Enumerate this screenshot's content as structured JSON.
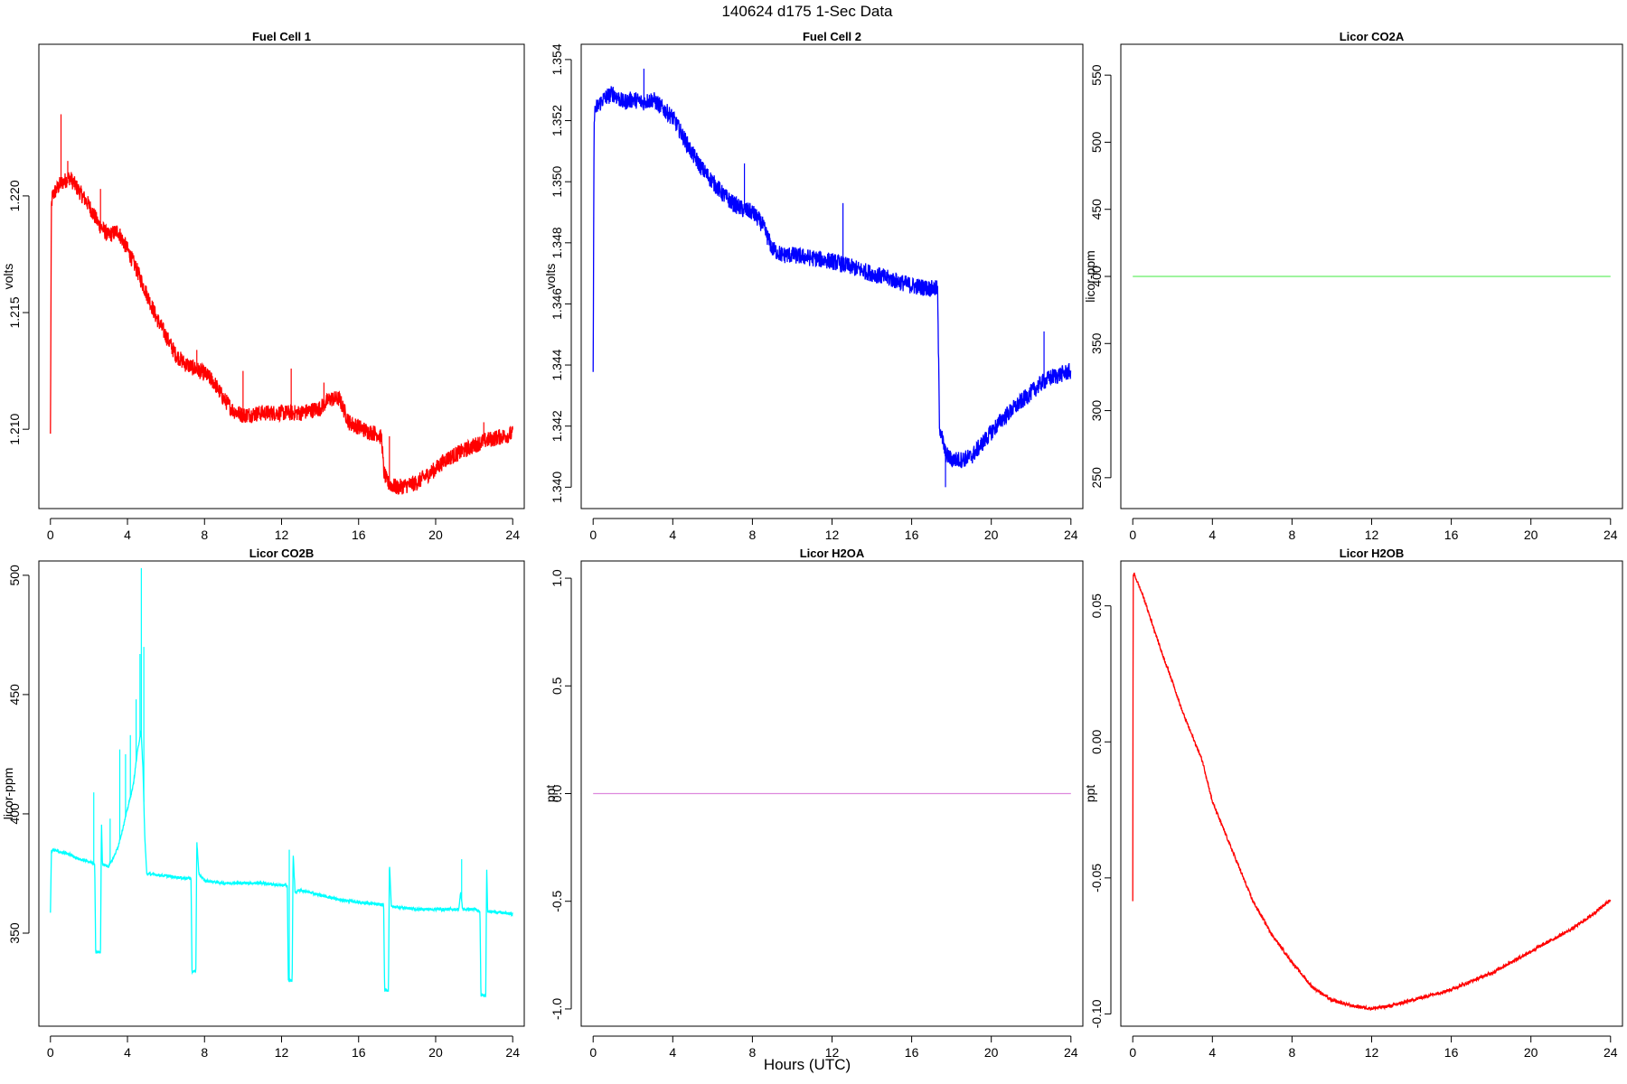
{
  "figure": {
    "title": "140624   d175   1-Sec Data",
    "xlabel": "Hours (UTC)"
  },
  "chart_data": [
    {
      "type": "line",
      "title": "Fuel Cell 1",
      "xlabel": "",
      "ylabel": "volts",
      "color": "#ff0000",
      "xlim": [
        -0.6,
        24.6
      ],
      "ylim": [
        1.2066,
        1.2265
      ],
      "xticks": [
        0,
        4,
        8,
        12,
        16,
        20,
        24
      ],
      "yticks": [
        1.21,
        1.215,
        1.22
      ],
      "ytick_labels": [
        "1.210",
        "1.215",
        "1.220"
      ],
      "noise": 0.00035,
      "series": [
        {
          "x": [
            0,
            0.05,
            0.1,
            0.5,
            1,
            1.5,
            2,
            2.5,
            3,
            3.5,
            4,
            4.5,
            5,
            5.5,
            6,
            6.5,
            7,
            7.5,
            8,
            8.5,
            9,
            9.5,
            10,
            11,
            12,
            13,
            14,
            14.5,
            15,
            15.5,
            16,
            16.5,
            17,
            17.2,
            17.3,
            17.5,
            18,
            18.5,
            19,
            19.5,
            20,
            20.5,
            21,
            21.5,
            22,
            22.5,
            23,
            23.5,
            24
          ],
          "y": [
            1.2097,
            1.2195,
            1.22,
            1.2205,
            1.2208,
            1.2202,
            1.2196,
            1.2188,
            1.2183,
            1.2185,
            1.2177,
            1.2168,
            1.2158,
            1.2148,
            1.214,
            1.2132,
            1.2128,
            1.2126,
            1.2124,
            1.212,
            1.2113,
            1.2108,
            1.2106,
            1.2107,
            1.2107,
            1.2107,
            1.2109,
            1.2113,
            1.2113,
            1.2103,
            1.2101,
            1.2099,
            1.2098,
            1.2096,
            1.2082,
            1.2077,
            1.2075,
            1.2076,
            1.2077,
            1.208,
            1.2083,
            1.2087,
            1.2089,
            1.2091,
            1.2093,
            1.2095,
            1.2096,
            1.2097,
            1.2098
          ]
        }
      ],
      "spikes": [
        {
          "x": 0.55,
          "y": 1.2235
        },
        {
          "x": 0.9,
          "y": 1.2215
        },
        {
          "x": 2.6,
          "y": 1.2203
        },
        {
          "x": 7.6,
          "y": 1.2134
        },
        {
          "x": 10.0,
          "y": 1.2125
        },
        {
          "x": 12.5,
          "y": 1.2126
        },
        {
          "x": 14.2,
          "y": 1.212
        },
        {
          "x": 17.6,
          "y": 1.2097
        },
        {
          "x": 22.5,
          "y": 1.2103
        }
      ]
    },
    {
      "type": "line",
      "title": "Fuel Cell 2",
      "xlabel": "",
      "ylabel": "volts",
      "color": "#0000ff",
      "xlim": [
        -0.6,
        24.6
      ],
      "ylim": [
        1.3393,
        1.3545
      ],
      "xticks": [
        0,
        4,
        8,
        12,
        16,
        20,
        24
      ],
      "yticks": [
        1.34,
        1.342,
        1.344,
        1.346,
        1.348,
        1.35,
        1.352,
        1.354
      ],
      "ytick_labels": [
        "1.340",
        "1.342",
        "1.344",
        "1.346",
        "1.348",
        "1.350",
        "1.352",
        "1.354"
      ],
      "noise": 0.00028,
      "series": [
        {
          "x": [
            0,
            0.05,
            0.15,
            0.5,
            1,
            1.5,
            2,
            2.5,
            3,
            3.5,
            4,
            4.5,
            5,
            5.5,
            6,
            6.5,
            7,
            7.5,
            8,
            8.5,
            9,
            9.5,
            10,
            11,
            12,
            13,
            14,
            15,
            16,
            17,
            17.3,
            17.4,
            17.7,
            18,
            18.5,
            19,
            19.5,
            20,
            20.5,
            21,
            21.5,
            22,
            22.5,
            23,
            23.5,
            24
          ],
          "y": [
            1.3437,
            1.3522,
            1.3524,
            1.3527,
            1.3529,
            1.3526,
            1.3527,
            1.3526,
            1.3527,
            1.3524,
            1.3521,
            1.3515,
            1.3509,
            1.3504,
            1.35,
            1.3496,
            1.3493,
            1.3491,
            1.349,
            1.3486,
            1.3478,
            1.3476,
            1.3476,
            1.3475,
            1.3474,
            1.3472,
            1.347,
            1.3468,
            1.3466,
            1.3465,
            1.3465,
            1.342,
            1.3411,
            1.3409,
            1.3409,
            1.341,
            1.3414,
            1.3418,
            1.3422,
            1.3425,
            1.3428,
            1.3431,
            1.3434,
            1.3436,
            1.3437,
            1.3438
          ]
        }
      ],
      "spikes": [
        {
          "x": 2.55,
          "y": 1.3537
        },
        {
          "x": 7.6,
          "y": 1.3506
        },
        {
          "x": 12.55,
          "y": 1.3493
        },
        {
          "x": 17.7,
          "y": 1.34
        },
        {
          "x": 22.65,
          "y": 1.3451
        }
      ]
    },
    {
      "type": "line",
      "title": "Licor CO2A",
      "xlabel": "",
      "ylabel": "licor-ppm",
      "color": "#66ee66",
      "xlim": [
        -0.6,
        24.6
      ],
      "ylim": [
        227,
        573
      ],
      "xticks": [
        0,
        4,
        8,
        12,
        16,
        20,
        24
      ],
      "yticks": [
        250,
        300,
        350,
        400,
        450,
        500,
        550
      ],
      "ytick_labels": [
        "250",
        "300",
        "350",
        "400",
        "450",
        "500",
        "550"
      ],
      "noise": 0,
      "series": [
        {
          "x": [
            0,
            24
          ],
          "y": [
            400,
            400
          ]
        }
      ],
      "spikes": []
    },
    {
      "type": "line",
      "title": "Licor CO2B",
      "xlabel": "",
      "ylabel": "licor-ppm",
      "color": "#00ffff",
      "xlim": [
        -0.6,
        24.6
      ],
      "ylim": [
        311,
        506
      ],
      "xticks": [
        0,
        4,
        8,
        12,
        16,
        20,
        24
      ],
      "yticks": [
        350,
        400,
        450,
        500
      ],
      "ytick_labels": [
        "350",
        "400",
        "450",
        "500"
      ],
      "noise": 0.6,
      "series": [
        {
          "x": [
            0,
            0.05,
            0.1,
            0.5,
            1,
            1.5,
            2,
            2.3,
            2.35,
            2.4,
            2.6,
            2.65,
            2.7,
            3.0,
            3.3,
            3.5,
            3.7,
            4.0,
            4.3,
            4.5,
            4.7,
            4.8,
            4.9,
            5.0,
            6.0,
            7.0,
            7.3,
            7.35,
            7.4,
            7.55,
            7.6,
            7.7,
            8.0,
            9.0,
            10,
            11,
            12,
            12.3,
            12.35,
            12.4,
            12.55,
            12.6,
            12.7,
            13,
            14,
            15,
            16,
            17,
            17.3,
            17.35,
            17.4,
            17.55,
            17.6,
            17.7,
            18,
            19,
            20,
            21,
            21.2,
            21.3,
            21.4,
            22,
            22.3,
            22.35,
            22.4,
            22.6,
            22.65,
            22.7,
            23,
            24
          ],
          "y": [
            358,
            384,
            385,
            384,
            383,
            381,
            380,
            379,
            342,
            342,
            342,
            397,
            379,
            378,
            382,
            386,
            392,
            402,
            412,
            425,
            435,
            420,
            390,
            375,
            374,
            373,
            373,
            334,
            334,
            334,
            389,
            375,
            372,
            371,
            371,
            371,
            370,
            370,
            330,
            330,
            330,
            384,
            367,
            368,
            366,
            364,
            363,
            362,
            362,
            326,
            326,
            326,
            380,
            361,
            361,
            360,
            360,
            360,
            360,
            367,
            360,
            360,
            359,
            324,
            324,
            324,
            378,
            359,
            359,
            358
          ]
        }
      ],
      "spikes": [
        {
          "x": 2.25,
          "y": 409
        },
        {
          "x": 3.1,
          "y": 398
        },
        {
          "x": 3.6,
          "y": 427
        },
        {
          "x": 3.9,
          "y": 425
        },
        {
          "x": 4.15,
          "y": 433
        },
        {
          "x": 4.45,
          "y": 448
        },
        {
          "x": 4.65,
          "y": 467
        },
        {
          "x": 4.72,
          "y": 503
        },
        {
          "x": 4.85,
          "y": 470
        },
        {
          "x": 12.4,
          "y": 385
        },
        {
          "x": 21.35,
          "y": 381
        }
      ]
    },
    {
      "type": "line",
      "title": "Licor H2OA",
      "xlabel": "",
      "ylabel": "ppt",
      "color": "#dd88dd",
      "xlim": [
        -0.6,
        24.6
      ],
      "ylim": [
        -1.08,
        1.08
      ],
      "xticks": [
        0,
        4,
        8,
        12,
        16,
        20,
        24
      ],
      "yticks": [
        -1.0,
        -0.5,
        0.0,
        0.5,
        1.0
      ],
      "ytick_labels": [
        "-1.0",
        "-0.5",
        "0.0",
        "0.5",
        "1.0"
      ],
      "noise": 0,
      "series": [
        {
          "x": [
            0,
            24
          ],
          "y": [
            0,
            0
          ]
        }
      ],
      "spikes": []
    },
    {
      "type": "line",
      "title": "Licor H2OB",
      "xlabel": "",
      "ylabel": "ppt",
      "color": "#ff0000",
      "xlim": [
        -0.6,
        24.6
      ],
      "ylim": [
        -0.1045,
        0.0665
      ],
      "xticks": [
        0,
        4,
        8,
        12,
        16,
        20,
        24
      ],
      "yticks": [
        -0.1,
        -0.05,
        0.0,
        0.05
      ],
      "ytick_labels": [
        "-0.10",
        "-0.05",
        "0.00",
        "0.05"
      ],
      "noise": 0.0006,
      "series": [
        {
          "x": [
            0,
            0.02,
            0.05,
            0.5,
            1,
            1.5,
            2,
            2.5,
            3,
            3.5,
            4,
            5,
            6,
            7,
            8,
            9,
            10,
            11,
            12,
            13,
            14,
            15,
            16,
            17,
            18,
            19,
            20,
            21,
            22,
            23,
            24
          ],
          "y": [
            -0.059,
            0.061,
            0.062,
            0.054,
            0.043,
            0.032,
            0.022,
            0.011,
            0.002,
            -0.007,
            -0.022,
            -0.04,
            -0.058,
            -0.071,
            -0.081,
            -0.09,
            -0.095,
            -0.097,
            -0.098,
            -0.097,
            -0.095,
            -0.093,
            -0.091,
            -0.088,
            -0.085,
            -0.081,
            -0.077,
            -0.073,
            -0.069,
            -0.064,
            -0.058
          ]
        }
      ],
      "spikes": []
    }
  ]
}
